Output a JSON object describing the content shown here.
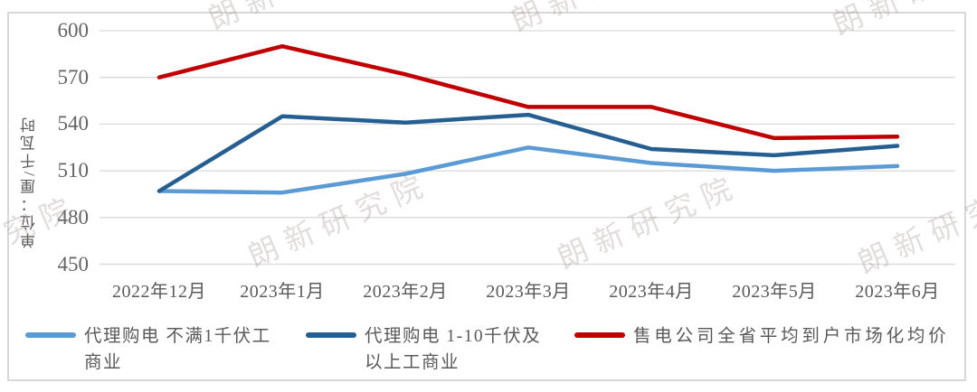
{
  "watermark": {
    "text": "朗新研究院"
  },
  "y_axis": {
    "title": "单位：厘/千瓦时",
    "ticks": [
      450,
      480,
      510,
      540,
      570,
      600
    ],
    "min": 450,
    "max": 600
  },
  "chart_data": {
    "type": "line",
    "title": "",
    "xlabel": "",
    "ylabel": "单位：厘/千瓦时",
    "ylim": [
      450,
      600
    ],
    "ytick_step": 30,
    "grid": true,
    "legend_position": "bottom",
    "categories": [
      "2022年12月",
      "2023年1月",
      "2023年2月",
      "2023年3月",
      "2023年4月",
      "2023年5月",
      "2023年6月"
    ],
    "series": [
      {
        "name": "代理购电 不满1千伏工商业",
        "color": "#5B9BD5",
        "values": [
          497,
          496,
          508,
          525,
          515,
          510,
          513
        ],
        "legend_lines": [
          "代理购电 不满1千伏工",
          "商业"
        ]
      },
      {
        "name": "代理购电 1-10千伏及以上工商业",
        "color": "#255E91",
        "values": [
          497,
          545,
          541,
          546,
          524,
          520,
          526
        ],
        "legend_lines": [
          "代理购电 1-10千伏及",
          "以上工商业"
        ]
      },
      {
        "name": "售电公司全省平均到户市场化均价",
        "color": "#C00000",
        "values": [
          570,
          590,
          572,
          551,
          551,
          531,
          532
        ],
        "legend_lines": [
          "售电公司全省平均到户市场化均价"
        ]
      }
    ]
  },
  "colors": {
    "grid": "#D9D9D9",
    "panel_border": "#D8D8D8",
    "axis_text": "#5a5a5a",
    "watermark_text": "#968686"
  }
}
